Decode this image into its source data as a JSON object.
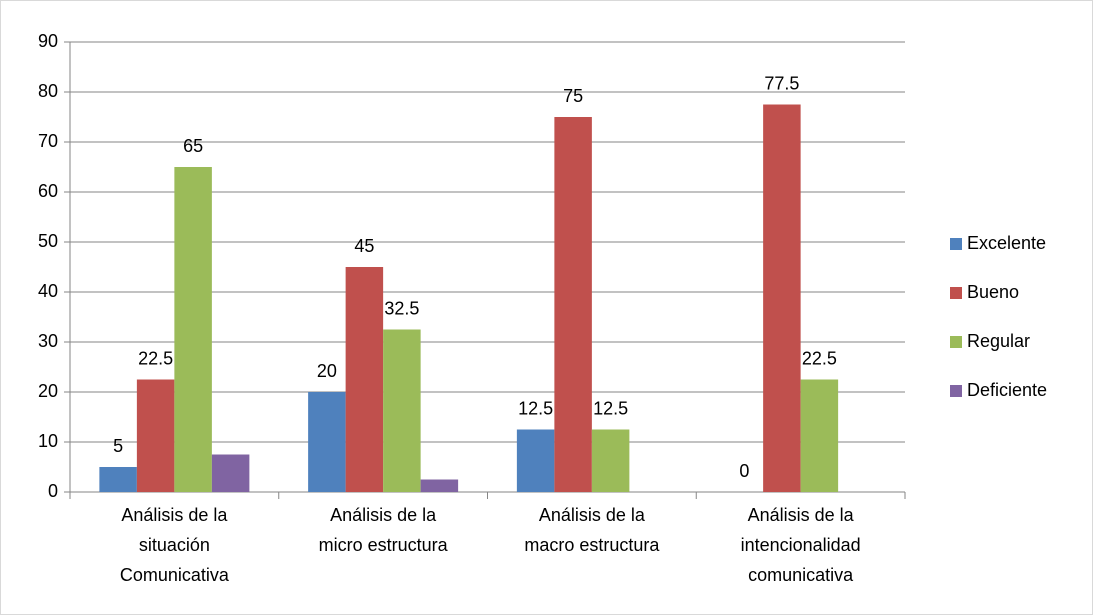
{
  "chart_data": {
    "type": "bar",
    "categories": [
      [
        "Análisis de la",
        "situación",
        "Comunicativa"
      ],
      [
        "Análisis de la",
        "micro estructura"
      ],
      [
        "Análisis de la",
        "macro estructura"
      ],
      [
        "Análisis de la",
        "intencionalidad",
        "comunicativa"
      ]
    ],
    "series": [
      {
        "name": "Excelente",
        "color": "#4f81bd",
        "values": [
          5,
          20,
          12.5,
          0
        ],
        "show_values": true
      },
      {
        "name": "Bueno",
        "color": "#c0504d",
        "values": [
          22.5,
          45,
          75,
          77.5
        ],
        "show_values": true
      },
      {
        "name": "Regular",
        "color": "#9bbb59",
        "values": [
          65,
          32.5,
          12.5,
          22.5
        ],
        "show_values": true
      },
      {
        "name": "Deficiente",
        "color": "#8064a2",
        "values": [
          7.5,
          2.5,
          null,
          null
        ],
        "show_values": false
      }
    ],
    "ylim": [
      0,
      90
    ],
    "yticks": [
      0,
      10,
      20,
      30,
      40,
      50,
      60,
      70,
      80,
      90
    ],
    "grid": true,
    "legend": "right"
  }
}
